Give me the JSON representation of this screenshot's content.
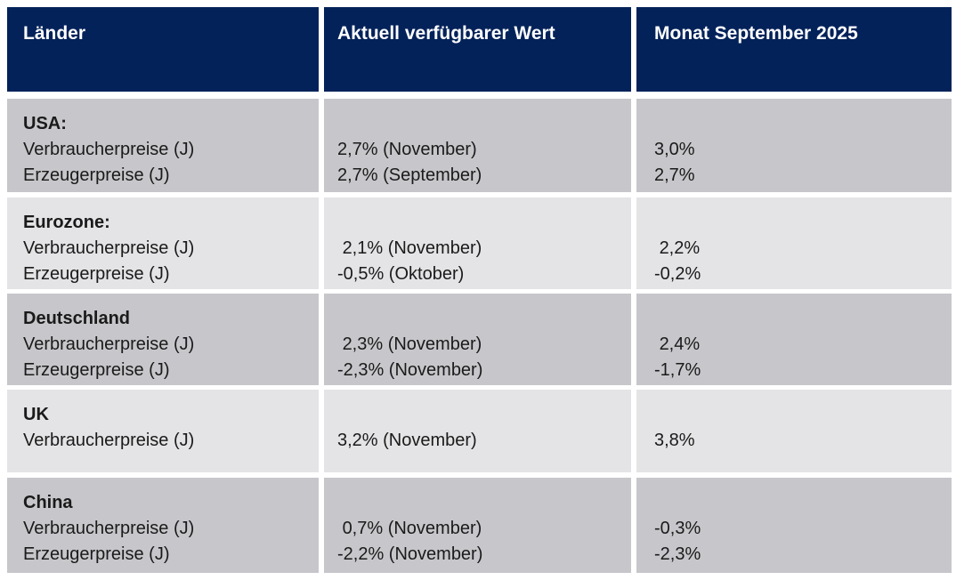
{
  "table": {
    "colors": {
      "header_bg": "#032259",
      "header_text": "#ffffff",
      "row_dark": "#c7c7cb",
      "row_light": "#e4e4e6",
      "body_text": "#1a1a1a",
      "page_bg": "#ffffff"
    },
    "headers": [
      {
        "label": "Länder"
      },
      {
        "label": "Aktuell verfügbarer Wert"
      },
      {
        "label": "Monat September 2025"
      }
    ],
    "rows": [
      {
        "country": "USA:",
        "metrics": "Verbraucherpreise (J)\nErzeugerpreise (J)",
        "current": "2,7% (November)\n2,7% (September)",
        "september": "3,0%\n2,7%"
      },
      {
        "country": "Eurozone:",
        "metrics": "Verbraucherpreise (J)\nErzeugerpreise (J)",
        "current": " 2,1% (November)\n-0,5% (Oktober)",
        "september": " 2,2%\n-0,2%"
      },
      {
        "country": "Deutschland",
        "metrics": "Verbraucherpreise (J)\nErzeugerpreise (J)",
        "current": " 2,3% (November)\n-2,3% (November)",
        "september": " 2,4%\n-1,7%"
      },
      {
        "country": "UK",
        "metrics": "Verbraucherpreise (J)",
        "current": "3,2% (November)",
        "september": "3,8%"
      },
      {
        "country": "China",
        "metrics": "Verbraucherpreise (J)\nErzeugerpreise (J)",
        "current": " 0,7% (November)\n-2,2% (November)",
        "september": "-0,3%\n-2,3%"
      }
    ]
  }
}
